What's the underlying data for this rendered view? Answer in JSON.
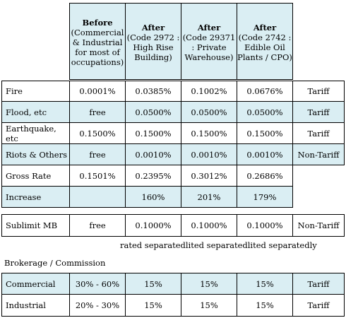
{
  "header": {
    "cols": [
      {
        "title": "Before",
        "sub": "(Commercial & Industrial for most of occupations)"
      },
      {
        "title": "After",
        "sub": "(Code 2972 : High Rise Building)"
      },
      {
        "title": "After",
        "sub": "(Code 29371 : Private Warehouse)"
      },
      {
        "title": "After",
        "sub": "(Code 2742 : Edible Oil Plants / CPO)"
      }
    ]
  },
  "rates": [
    {
      "label": "Fire",
      "values": [
        "0.0001%",
        "0.0385%",
        "0.1002%",
        "0.0676%"
      ],
      "type": "Tariff"
    },
    {
      "label": "Flood, etc",
      "values": [
        "free",
        "0.0500%",
        "0.0500%",
        "0.0500%"
      ],
      "type": "Tariff"
    },
    {
      "label": "Earthquake, etc",
      "values": [
        "0.1500%",
        "0.1500%",
        "0.1500%",
        "0.1500%"
      ],
      "type": "Tariff"
    },
    {
      "label": "Riots & Others",
      "values": [
        "free",
        "0.0010%",
        "0.0010%",
        "0.0010%"
      ],
      "type": "Non-Tariff"
    },
    {
      "label": "Gross Rate",
      "values": [
        "0.1501%",
        "0.2395%",
        "0.3012%",
        "0.2686%"
      ],
      "type": ""
    },
    {
      "label": "Increase",
      "values": [
        "",
        "160%",
        "201%",
        "179%"
      ],
      "type": ""
    }
  ],
  "sublimit": {
    "label": "Sublimit MB",
    "values": [
      "free",
      "0.1000%",
      "0.1000%",
      "0.1000%"
    ],
    "type": "Non-Tariff"
  },
  "note": "rated separatedlited separatedlited separatedly",
  "brokerage": {
    "title": "Brokerage / Commission",
    "rows": [
      {
        "label": "Commercial",
        "values": [
          "30% - 60%",
          "15%",
          "15%",
          "15%"
        ],
        "type": "Tariff"
      },
      {
        "label": "Industrial",
        "values": [
          "20% - 30%",
          "15%",
          "15%",
          "15%"
        ],
        "type": "Tariff"
      }
    ]
  }
}
